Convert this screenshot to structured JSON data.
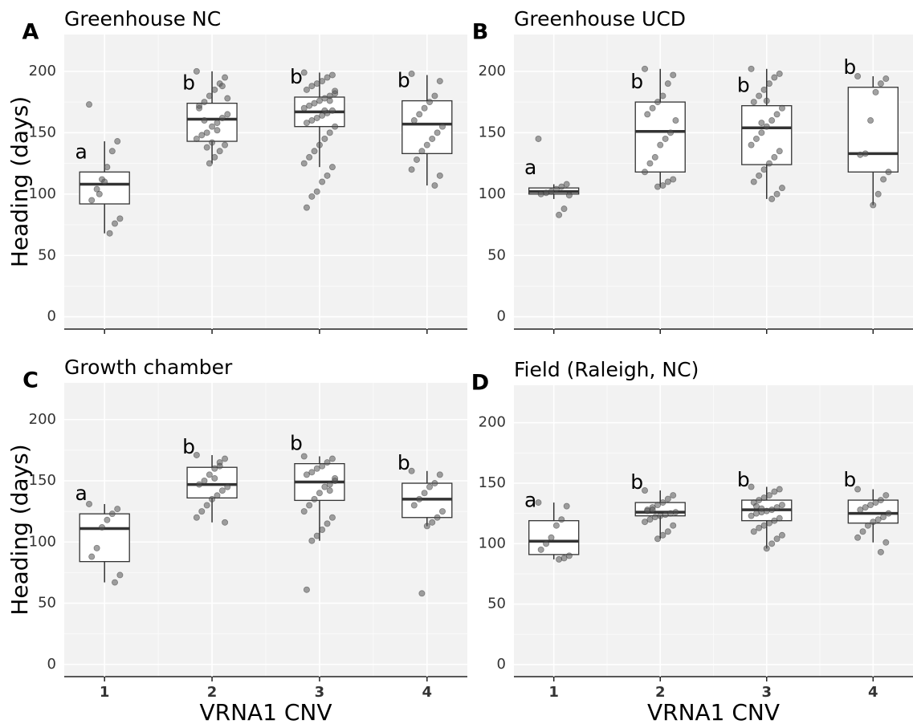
{
  "chart_data": [
    {
      "type": "box",
      "panel_label": "A",
      "title": "Greenhouse NC",
      "y_label": "Heading (days)",
      "ylim": [
        -10,
        230
      ],
      "yticks": [
        0,
        50,
        100,
        150,
        200
      ],
      "grid": true,
      "color": "#555555",
      "boxes": [
        {
          "whisker_low": 68,
          "q1": 92,
          "median": 108,
          "q3": 118,
          "whisker_high": 143,
          "letter": "a",
          "points": [
            173,
            143,
            135,
            122,
            112,
            104,
            95,
            80,
            76,
            68,
            110,
            100
          ]
        },
        {
          "whisker_low": 125,
          "q1": 143,
          "median": 161,
          "q3": 174,
          "whisker_high": 200,
          "letter": "b",
          "points": [
            200,
            195,
            190,
            185,
            180,
            175,
            170,
            165,
            162,
            158,
            155,
            150,
            148,
            145,
            140,
            135,
            130,
            125,
            160,
            172,
            178,
            188,
            152,
            142,
            138
          ]
        },
        {
          "whisker_low": 122,
          "q1": 155,
          "median": 167,
          "q3": 179,
          "whisker_high": 199,
          "letter": "b",
          "points": [
            199,
            197,
            195,
            192,
            190,
            188,
            185,
            182,
            180,
            178,
            176,
            174,
            172,
            170,
            168,
            166,
            164,
            162,
            160,
            158,
            155,
            150,
            145,
            140,
            135,
            130,
            125,
            122,
            115,
            110,
            102,
            98,
            89,
            184,
            176,
            168
          ]
        },
        {
          "whisker_low": 107,
          "q1": 133,
          "median": 157,
          "q3": 176,
          "whisker_high": 197,
          "letter": "b",
          "points": [
            198,
            192,
            180,
            175,
            170,
            165,
            160,
            155,
            150,
            145,
            140,
            135,
            128,
            120,
            115,
            107
          ]
        }
      ]
    },
    {
      "type": "box",
      "panel_label": "B",
      "title": "Greenhouse UCD",
      "ylim": [
        -10,
        230
      ],
      "yticks": [
        0,
        50,
        100,
        150,
        200
      ],
      "grid": true,
      "color": "#555555",
      "boxes": [
        {
          "whisker_low": 96,
          "q1": 100,
          "median": 102,
          "q3": 105,
          "whisker_high": 108,
          "letter": "a",
          "points": [
            145,
            108,
            106,
            104,
            102,
            101,
            100,
            99,
            88,
            83
          ]
        },
        {
          "whisker_low": 106,
          "q1": 118,
          "median": 151,
          "q3": 175,
          "whisker_high": 202,
          "letter": "b",
          "points": [
            202,
            197,
            190,
            180,
            175,
            170,
            165,
            160,
            150,
            145,
            140,
            130,
            125,
            118,
            112,
            110,
            107,
            106
          ]
        },
        {
          "whisker_low": 96,
          "q1": 124,
          "median": 154,
          "q3": 172,
          "whisker_high": 202,
          "letter": "b",
          "points": [
            202,
            198,
            195,
            190,
            185,
            180,
            175,
            170,
            165,
            160,
            155,
            150,
            145,
            140,
            135,
            130,
            125,
            120,
            115,
            110,
            105,
            100,
            96,
            176,
            158
          ]
        },
        {
          "whisker_low": 91,
          "q1": 118,
          "median": 133,
          "q3": 187,
          "whisker_high": 196,
          "letter": "b",
          "points": [
            196,
            194,
            190,
            183,
            160,
            133,
            132,
            118,
            112,
            100,
            91
          ]
        }
      ]
    },
    {
      "type": "box",
      "panel_label": "C",
      "title": "Growth chamber",
      "y_label": "Heading (days)",
      "x_label": "VRNA1 CNV",
      "categories": [
        "1",
        "2",
        "3",
        "4"
      ],
      "ylim": [
        -10,
        230
      ],
      "yticks": [
        0,
        50,
        100,
        150,
        200
      ],
      "grid": true,
      "color": "#555555",
      "boxes": [
        {
          "whisker_low": 67,
          "q1": 84,
          "median": 111,
          "q3": 123,
          "whisker_high": 131,
          "letter": "a",
          "points": [
            131,
            127,
            123,
            118,
            112,
            95,
            88,
            73,
            67
          ]
        },
        {
          "whisker_low": 116,
          "q1": 136,
          "median": 147,
          "q3": 161,
          "whisker_high": 171,
          "letter": "b",
          "points": [
            171,
            168,
            165,
            160,
            155,
            150,
            147,
            145,
            142,
            138,
            135,
            130,
            125,
            120,
            116,
            162,
            152
          ]
        },
        {
          "whisker_low": 101,
          "q1": 134,
          "median": 149,
          "q3": 164,
          "whisker_high": 170,
          "letter": "b",
          "points": [
            170,
            168,
            165,
            162,
            160,
            157,
            155,
            150,
            147,
            145,
            140,
            135,
            130,
            125,
            120,
            115,
            110,
            105,
            101,
            61,
            152,
            142
          ]
        },
        {
          "whisker_low": 113,
          "q1": 120,
          "median": 135,
          "q3": 148,
          "whisker_high": 158,
          "letter": "b",
          "points": [
            158,
            155,
            148,
            145,
            140,
            135,
            130,
            125,
            120,
            116,
            113,
            58
          ]
        }
      ]
    },
    {
      "type": "box",
      "panel_label": "D",
      "title": "Field (Raleigh, NC)",
      "x_label": "VRNA1 CNV",
      "categories": [
        "1",
        "2",
        "3",
        "4"
      ],
      "ylim": [
        -10,
        231
      ],
      "yticks": [
        0,
        50,
        100,
        150,
        200
      ],
      "grid": true,
      "color": "#555555",
      "boxes": [
        {
          "whisker_low": 87,
          "q1": 91,
          "median": 102,
          "q3": 119,
          "whisker_high": 134,
          "letter": "a",
          "points": [
            134,
            131,
            120,
            115,
            105,
            100,
            95,
            90,
            88,
            87
          ]
        },
        {
          "whisker_low": 104,
          "q1": 123,
          "median": 126,
          "q3": 134,
          "whisker_high": 144,
          "letter": "b",
          "points": [
            144,
            140,
            137,
            134,
            132,
            130,
            128,
            126,
            125,
            124,
            123,
            122,
            120,
            118,
            115,
            110,
            107,
            104,
            128,
            127
          ]
        },
        {
          "whisker_low": 96,
          "q1": 119,
          "median": 128,
          "q3": 136,
          "whisker_high": 147,
          "letter": "b",
          "points": [
            147,
            145,
            143,
            140,
            138,
            136,
            134,
            132,
            130,
            128,
            127,
            126,
            125,
            123,
            121,
            119,
            117,
            115,
            113,
            110,
            107,
            104,
            100,
            96,
            129,
            131
          ]
        },
        {
          "whisker_low": 101,
          "q1": 117,
          "median": 125,
          "q3": 136,
          "whisker_high": 145,
          "letter": "b",
          "points": [
            145,
            140,
            136,
            134,
            132,
            130,
            128,
            125,
            122,
            120,
            118,
            115,
            110,
            105,
            101,
            93
          ]
        }
      ]
    }
  ]
}
